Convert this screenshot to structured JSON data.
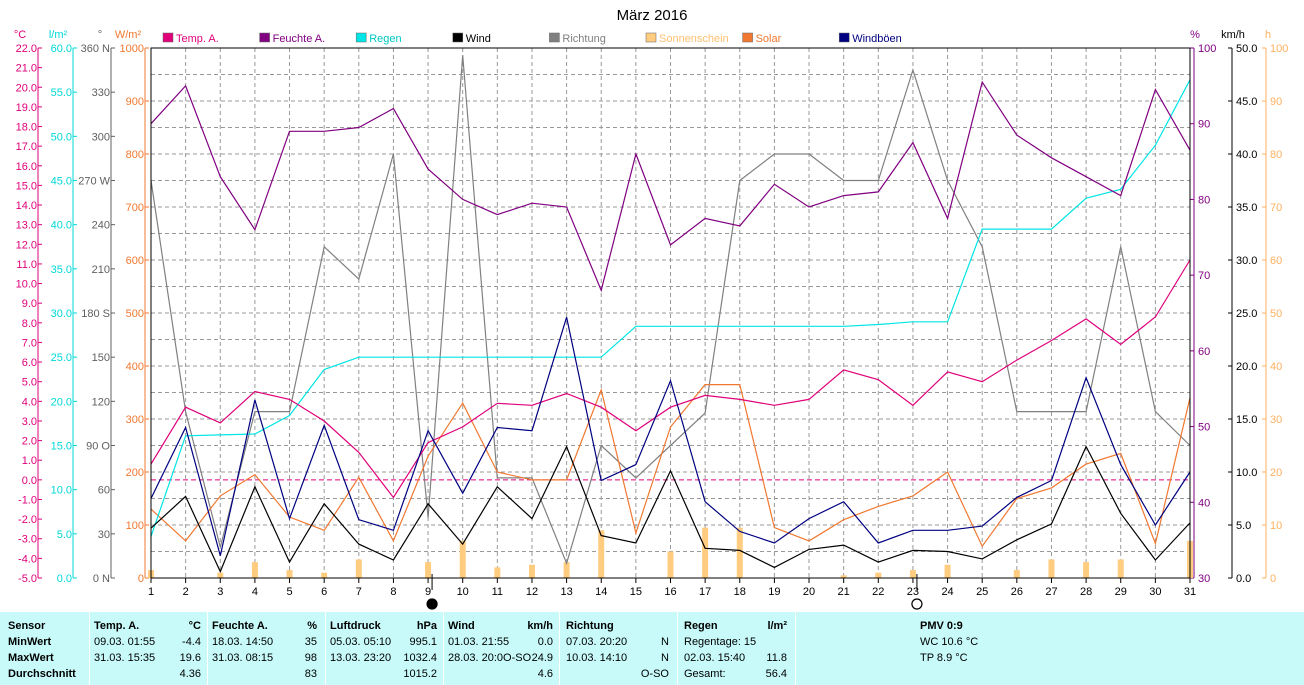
{
  "title": "März 2016",
  "axis_units": {
    "temp": "°C",
    "rain": "l/m²",
    "dir": "°",
    "solar": "W/m²",
    "humidity": "%",
    "wind": "km/h",
    "sun": "h"
  },
  "axis_ticks": {
    "temp": [
      "-5.0",
      "-4.0",
      "-3.0",
      "-2.0",
      "-1.0",
      "0.0",
      "1.0",
      "2.0",
      "3.0",
      "4.0",
      "5.0",
      "6.0",
      "7.0",
      "8.0",
      "9.0",
      "10.0",
      "11.0",
      "12.0",
      "13.0",
      "14.0",
      "15.0",
      "16.0",
      "17.0",
      "18.0",
      "19.0",
      "20.0",
      "21.0",
      "22.0"
    ],
    "rain": [
      "0.0",
      "5.0",
      "10.0",
      "15.0",
      "20.0",
      "25.0",
      "30.0",
      "35.0",
      "40.0",
      "45.0",
      "50.0",
      "55.0",
      "60.0"
    ],
    "dir": [
      "0 N",
      "30",
      "60",
      "90 O",
      "120",
      "150",
      "180 S",
      "210",
      "240",
      "270 W",
      "300",
      "330",
      "360 N"
    ],
    "solar": [
      "0",
      "100",
      "200",
      "300",
      "400",
      "500",
      "600",
      "700",
      "800",
      "900",
      "1000"
    ],
    "humidity": [
      "30",
      "40",
      "50",
      "60",
      "70",
      "80",
      "90",
      "100"
    ],
    "wind": [
      "0.0",
      "5.0",
      "10.0",
      "15.0",
      "20.0",
      "25.0",
      "30.0",
      "35.0",
      "40.0",
      "45.0",
      "50.0"
    ],
    "sun": [
      "0",
      "10",
      "20",
      "30",
      "40",
      "50",
      "60",
      "70",
      "80",
      "90",
      "100"
    ],
    "days": [
      "1",
      "2",
      "3",
      "4",
      "5",
      "6",
      "7",
      "8",
      "9",
      "10",
      "11",
      "12",
      "13",
      "14",
      "15",
      "16",
      "17",
      "18",
      "19",
      "20",
      "21",
      "22",
      "23",
      "24",
      "25",
      "26",
      "27",
      "28",
      "29",
      "30",
      "31"
    ]
  },
  "chart_data": {
    "type": "line",
    "title": "März 2016",
    "x": [
      1,
      2,
      3,
      4,
      5,
      6,
      7,
      8,
      9,
      10,
      11,
      12,
      13,
      14,
      15,
      16,
      17,
      18,
      19,
      20,
      21,
      22,
      23,
      24,
      25,
      26,
      27,
      28,
      29,
      30,
      31
    ],
    "series": [
      {
        "name": "Temp. A.",
        "unit": "°C",
        "color": "#e0007a",
        "values": [
          0.8,
          3.7,
          2.9,
          4.5,
          4.1,
          3.0,
          1.4,
          -0.9,
          1.9,
          2.7,
          3.9,
          3.8,
          4.4,
          3.7,
          2.5,
          3.7,
          4.3,
          4.1,
          3.8,
          4.1,
          5.6,
          5.1,
          3.8,
          5.5,
          5.0,
          6.1,
          7.1,
          8.2,
          6.9,
          8.3,
          11.2
        ]
      },
      {
        "name": "Feuchte A.",
        "unit": "%",
        "color": "#800080",
        "values": [
          90,
          95,
          83,
          76,
          89,
          89,
          89.5,
          92,
          84,
          80,
          78,
          79.5,
          79,
          68,
          86,
          74,
          77.5,
          76.5,
          82,
          79,
          80.5,
          81,
          87.5,
          77.5,
          95.5,
          88.5,
          85.5,
          83,
          80.5,
          94.5,
          86.5
        ]
      },
      {
        "name": "Regen",
        "unit": "l/m²",
        "color": "#00e5e5",
        "cumulative": true,
        "values": [
          4.7,
          16.1,
          16.2,
          16.3,
          18.4,
          23.6,
          25.0,
          25.0,
          25.0,
          25.0,
          25.0,
          25.0,
          25.0,
          25.0,
          28.5,
          28.5,
          28.5,
          28.5,
          28.5,
          28.5,
          28.5,
          28.7,
          29.0,
          29.0,
          39.5,
          39.5,
          39.5,
          43.0,
          44.0,
          49.0,
          56.4
        ]
      },
      {
        "name": "Wind",
        "unit": "km/h",
        "color": "#000000",
        "values": [
          4.7,
          7.7,
          0.6,
          8.6,
          1.5,
          7.0,
          3.2,
          1.7,
          7.0,
          3.2,
          8.6,
          5.6,
          12.4,
          4.0,
          3.3,
          10.1,
          2.8,
          2.6,
          1.0,
          2.7,
          3.1,
          1.5,
          2.6,
          2.5,
          1.8,
          3.6,
          5.1,
          12.4,
          6.1,
          1.7,
          5.2
        ]
      },
      {
        "name": "Richtung",
        "unit": "°",
        "color": "#808080",
        "values": [
          270,
          113,
          21,
          113,
          113,
          225,
          203,
          288,
          41,
          355,
          68,
          68,
          10,
          90,
          68,
          90,
          112,
          270,
          288,
          288,
          270,
          270,
          345,
          270,
          225,
          113,
          113,
          113,
          225,
          113,
          90
        ]
      },
      {
        "name": "Sonnenschein",
        "unit": "h",
        "color": "#ffcc80",
        "type": "bar",
        "values": [
          1.5,
          0,
          1,
          3,
          1.5,
          1,
          3.5,
          0,
          3,
          7,
          2,
          2.5,
          3,
          9,
          0,
          5,
          9.5,
          9.5,
          0,
          0,
          0.5,
          1,
          1.5,
          2.5,
          0,
          1.5,
          3.5,
          3,
          3.5,
          0,
          7
        ]
      },
      {
        "name": "Solar",
        "unit": "W/m²",
        "color": "#f07830",
        "values": [
          130,
          70,
          155,
          195,
          115,
          90,
          190,
          70,
          230,
          330,
          200,
          185,
          185,
          355,
          85,
          285,
          365,
          365,
          95,
          70,
          110,
          135,
          155,
          200,
          60,
          150,
          170,
          215,
          235,
          65,
          340
        ]
      },
      {
        "name": "Windböen",
        "unit": "km/h",
        "color": "#000080",
        "values": [
          7.5,
          14.2,
          2.1,
          16.8,
          5.6,
          14.4,
          5.5,
          4.5,
          13.9,
          8.0,
          14.2,
          13.9,
          24.6,
          9.2,
          10.7,
          18.6,
          7.2,
          4.4,
          3.3,
          5.6,
          7.2,
          3.3,
          4.5,
          4.5,
          4.9,
          7.6,
          9.2,
          18.9,
          10.7,
          5.0,
          10.0
        ]
      }
    ],
    "axes": {
      "temp": {
        "label": "°C",
        "range": [
          -5,
          22
        ]
      },
      "rain": {
        "label": "l/m²",
        "range": [
          0,
          60
        ]
      },
      "direction": {
        "label": "°",
        "range": [
          0,
          360
        ]
      },
      "solar": {
        "label": "W/m²",
        "range": [
          0,
          1000
        ]
      },
      "humidity": {
        "label": "%",
        "range": [
          30,
          100
        ]
      },
      "wind": {
        "label": "km/h",
        "range": [
          0,
          50
        ]
      },
      "sunshine": {
        "label": "h",
        "range": [
          0,
          100
        ]
      }
    },
    "grid": true,
    "legend_placement": "top",
    "moon_markers": [
      {
        "day": 9,
        "phase": "new moon"
      },
      {
        "day": 23,
        "phase": "full moon"
      }
    ]
  },
  "stats": {
    "sensor": {
      "header": "Sensor",
      "rows": [
        "MinWert",
        "MaxWert",
        "Durchschnitt"
      ]
    },
    "temp": {
      "header": "Temp. A.",
      "unit": "°C",
      "rows": [
        [
          "09.03.  01:55",
          "-4.4"
        ],
        [
          "31.03.  15:35",
          "19.6"
        ],
        [
          "",
          "4.36"
        ]
      ]
    },
    "humidity": {
      "header": "Feuchte A.",
      "unit": "%",
      "rows": [
        [
          "18.03.  14:50",
          "35"
        ],
        [
          "31.03.  08:15",
          "98"
        ],
        [
          "",
          "83"
        ]
      ]
    },
    "pressure": {
      "header": "Luftdruck",
      "unit": "hPa",
      "rows": [
        [
          "05.03.  05:10",
          "995.1"
        ],
        [
          "13.03.  23:20",
          "1032.4"
        ],
        [
          "",
          "1015.2"
        ]
      ]
    },
    "wind": {
      "header": "Wind",
      "unit": "km/h",
      "rows": [
        [
          "01.03.  21:55",
          "0.0"
        ],
        [
          "28.03.  20:0O-SO",
          "24.9"
        ],
        [
          "",
          "4.6"
        ]
      ]
    },
    "direction": {
      "header": "Richtung",
      "rows": [
        [
          "07.03.  20:20",
          "N"
        ],
        [
          "10.03.  14:10",
          "N"
        ],
        [
          "",
          "O-SO"
        ]
      ]
    },
    "rain": {
      "header": "Regen",
      "unit": "l/m²",
      "rows": [
        [
          "Regentage: 15",
          ""
        ],
        [
          "02.03.  15:40",
          "11.8"
        ],
        [
          "Gesamt:",
          "56.4"
        ]
      ]
    },
    "pmv": {
      "header": "PMV 0:9",
      "rows": [
        "WC 10.6 °C",
        "TP 8.9 °C"
      ]
    }
  }
}
